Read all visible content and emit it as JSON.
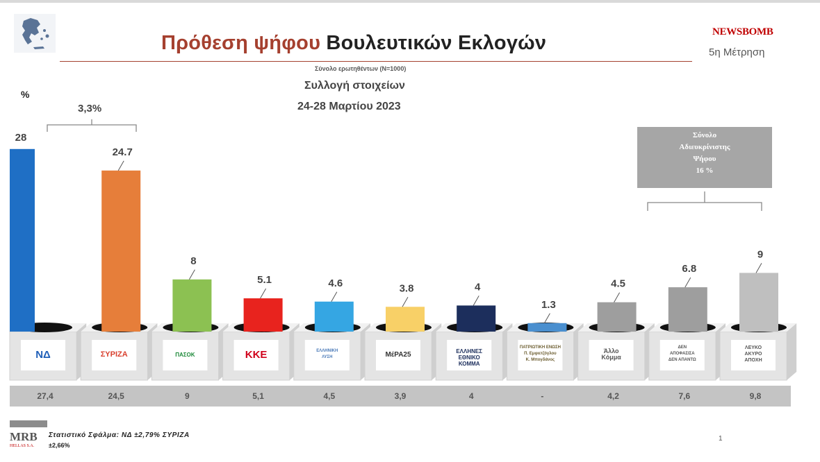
{
  "header": {
    "title_part1": "Πρόθεση ψήφου",
    "title_part2": "Βουλευτικών Εκλογών",
    "subtitle": "Σύνολο ερωτηθέντων (Ν=1000)",
    "collection_line1": "Συλλογή στοιχείων",
    "collection_line2": "24-28 Μαρτίου 2023",
    "brand": "NEWSBOMB",
    "brand_sub": "5η Μέτρηση"
  },
  "annotations": {
    "percent_symbol": "%",
    "bracket_label": "3,3%",
    "undecided_line1": "Σύνολο",
    "undecided_line2": "Αδιευκρίνιστης",
    "undecided_line3": "Ψήφου",
    "undecided_line4": "16 %"
  },
  "chart_data": {
    "type": "bar",
    "title": "Πρόθεση ψήφου Βουλευτικών Εκλογών",
    "categories": [
      "ΝΔ",
      "ΣΥΡΙΖΑ",
      "ΠΑΣΟΚ-ΚΙΝΑΛ",
      "ΚΚΕ",
      "Ελληνική Λύση",
      "ΜέΡΑ25",
      "Έλληνες",
      "Πατριωτική Ένωση",
      "Άλλο Κόμμα",
      "Δεν αποφάσισα / Δεν απαντώ",
      "Λευκό / Άκυρο / Αποχή"
    ],
    "values": [
      28,
      24.7,
      8,
      5.1,
      4.6,
      3.8,
      4,
      1.3,
      4.5,
      6.8,
      9
    ],
    "value_labels": [
      "28",
      "24.7",
      "8",
      "5.1",
      "4.6",
      "3.8",
      "4",
      "1.3",
      "4.5",
      "6.8",
      "9"
    ],
    "previous_measurement": [
      "27,4",
      "24,5",
      "9",
      "5,1",
      "4,5",
      "3,9",
      "4",
      "-",
      "4,2",
      "7,6",
      "9,8"
    ],
    "colors": [
      "#1f6fc5",
      "#e67e3a",
      "#8cc152",
      "#e8231e",
      "#35a6e3",
      "#f8d067",
      "#1c2e5c",
      "#4a8fcf",
      "#9e9e9e",
      "#9e9e9e",
      "#bfbfbf"
    ],
    "ballot_labels": [
      [
        "ΝΔ"
      ],
      [
        "ΣΥΡΙΖΑ"
      ],
      [
        "ΠΑΣΟΚ"
      ],
      [
        "ΚΚΕ"
      ],
      [
        "ΕΛΛΗΝΙΚΗ",
        "ΛΥΣΗ"
      ],
      [
        "ΜέΡΑ25"
      ],
      [
        "ΕΛΛΗΝΕΣ",
        "ΕΘΝΙΚΟ ΚΟΜΜΑ"
      ],
      [
        "ΠΑΤΡΙΩΤΙΚΗ ΕΝΩΣΗ",
        "Π. Εμφιετζόγλου",
        "Κ. Μπογδάνος"
      ],
      [
        "Άλλο",
        "Κόμμα"
      ],
      [
        "ΔΕΝ",
        "ΑΠΟΦΑΣΙΣΑ",
        "ΔΕΝ ΑΠΑΝΤΩ"
      ],
      [
        "ΛΕΥΚΟ",
        "ΑΚΥΡΟ",
        "ΑΠΟΧΗ"
      ]
    ],
    "xlabel": "",
    "ylabel": "%",
    "ylim": [
      0,
      30
    ]
  },
  "footer": {
    "logo_text": "MRB",
    "logo_sub": "HELLAS S.A.",
    "error_line1": "Στατιστικό Σφάλμα: ΝΔ ±2,79% ΣΥΡΙΖΑ",
    "error_line2": "±2,66%",
    "page_number": "1"
  },
  "colors": {
    "accent": "#a5402f",
    "brand": "#c00000",
    "box_gray": "#a6a6a6"
  }
}
